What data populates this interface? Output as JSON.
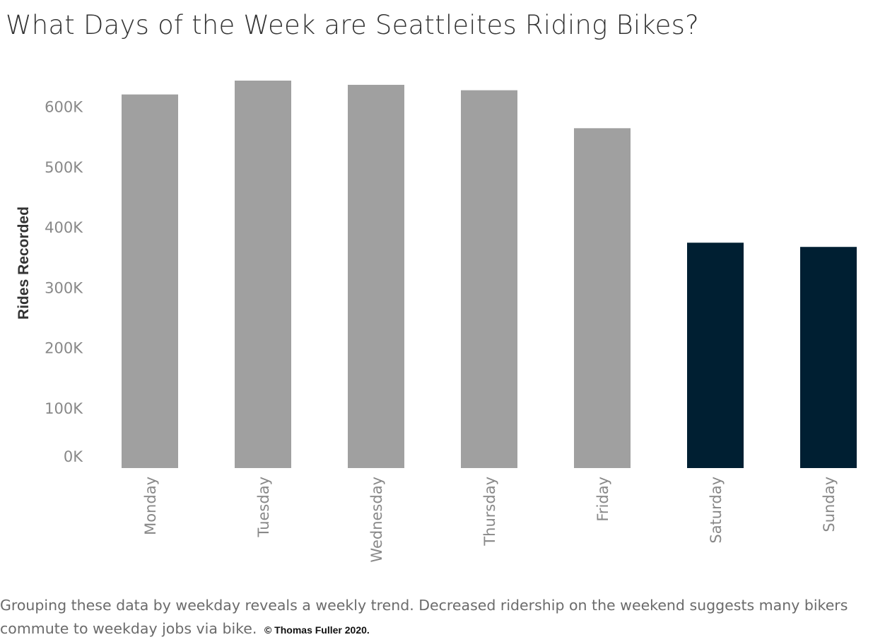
{
  "title": "What Days of the Week are Seattleites Riding Bikes?",
  "footer": {
    "text": "Grouping these data by weekday reveals a weekly trend. Decreased ridership on the weekend suggests many bikers commute to weekday jobs via bike.",
    "copyright": "© Thomas Fuller 2020."
  },
  "colors": {
    "weekday": "#a0a0a0",
    "weekend": "#001f32",
    "tick_text": "#888888",
    "axis_title": "#333333"
  },
  "chart_data": {
    "type": "bar",
    "categories": [
      "Monday",
      "Tuesday",
      "Wednesday",
      "Thursday",
      "Friday",
      "Saturday",
      "Sunday"
    ],
    "values": [
      620000,
      643000,
      636000,
      627000,
      564000,
      374000,
      367000
    ],
    "groups": [
      "weekday",
      "weekday",
      "weekday",
      "weekday",
      "weekday",
      "weekend",
      "weekend"
    ],
    "ylabel": "Rides Recorded",
    "xlabel": "",
    "ylim": [
      0,
      643000
    ],
    "yticks": [
      0,
      100000,
      200000,
      300000,
      400000,
      500000,
      600000
    ],
    "ytick_labels": [
      "0K",
      "100K",
      "200K",
      "300K",
      "400K",
      "500K",
      "600K"
    ],
    "grid": false,
    "legend": "none"
  }
}
